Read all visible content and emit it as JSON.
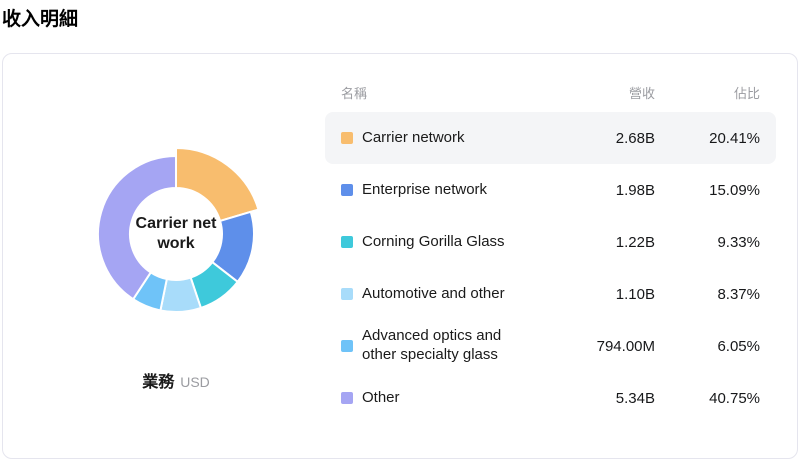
{
  "title": "收入明細",
  "chart_data": {
    "type": "pie",
    "donut": true,
    "center_label": "Carrier net work",
    "dimension_label": "業務",
    "unit_label": "USD",
    "legend_position": "right-table",
    "colors": {
      "carrier_network": "#f8bd6e",
      "enterprise_network": "#5e8fea",
      "corning_gorilla_glass": "#3ec9db",
      "automotive_and_other": "#a8dcfa",
      "advanced_optics": "#6fc3f8",
      "other": "#a5a5f3"
    },
    "series": [
      {
        "name": "Carrier network",
        "revenue_label": "2.68B",
        "percent": 20.41,
        "color": "#f8bd6e",
        "selected": true
      },
      {
        "name": "Enterprise network",
        "revenue_label": "1.98B",
        "percent": 15.09,
        "color": "#5e8fea",
        "selected": false
      },
      {
        "name": "Corning Gorilla Glass",
        "revenue_label": "1.22B",
        "percent": 9.33,
        "color": "#3ec9db",
        "selected": false
      },
      {
        "name": "Automotive and other",
        "revenue_label": "1.10B",
        "percent": 8.37,
        "color": "#a8dcfa",
        "selected": false
      },
      {
        "name": "Advanced optics and other specialty glass",
        "revenue_label": "794.00M",
        "percent": 6.05,
        "color": "#6fc3f8",
        "selected": false
      },
      {
        "name": "Other",
        "revenue_label": "5.34B",
        "percent": 40.75,
        "color": "#a5a5f3",
        "selected": false
      }
    ]
  },
  "table": {
    "columns": {
      "name": "名稱",
      "revenue": "營收",
      "percent": "佔比"
    },
    "rows": [
      {
        "name": "Carrier network",
        "revenue": "2.68B",
        "percent": "20.41%",
        "color": "#f8bd6e",
        "highlighted": true
      },
      {
        "name": "Enterprise network",
        "revenue": "1.98B",
        "percent": "15.09%",
        "color": "#5e8fea",
        "highlighted": false
      },
      {
        "name": "Corning Gorilla Glass",
        "revenue": "1.22B",
        "percent": "9.33%",
        "color": "#3ec9db",
        "highlighted": false
      },
      {
        "name": "Automotive and other",
        "revenue": "1.10B",
        "percent": "8.37%",
        "color": "#a8dcfa",
        "highlighted": false
      },
      {
        "name": "Advanced optics and other specialty glass",
        "revenue": "794.00M",
        "percent": "6.05%",
        "color": "#6fc3f8",
        "highlighted": false
      },
      {
        "name": "Other",
        "revenue": "5.34B",
        "percent": "40.75%",
        "color": "#a5a5f3",
        "highlighted": false
      }
    ]
  }
}
